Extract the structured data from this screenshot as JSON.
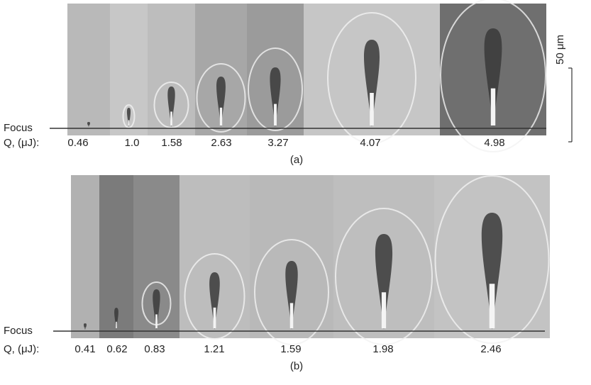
{
  "figure_a": {
    "focus_label": "Focus",
    "q_label": "Q, (μJ):",
    "energies": [
      "0.46",
      "1.0",
      "1.58",
      "2.63",
      "3.27",
      "4.07",
      "4.98"
    ],
    "caption": "(a)"
  },
  "figure_b": {
    "focus_label": "Focus",
    "q_label": "Q, (μJ):",
    "energies": [
      "0.41",
      "0.62",
      "0.83",
      "1.21",
      "1.59",
      "1.98",
      "2.46"
    ],
    "caption": "(b)"
  },
  "scale_bar": "50 μm"
}
